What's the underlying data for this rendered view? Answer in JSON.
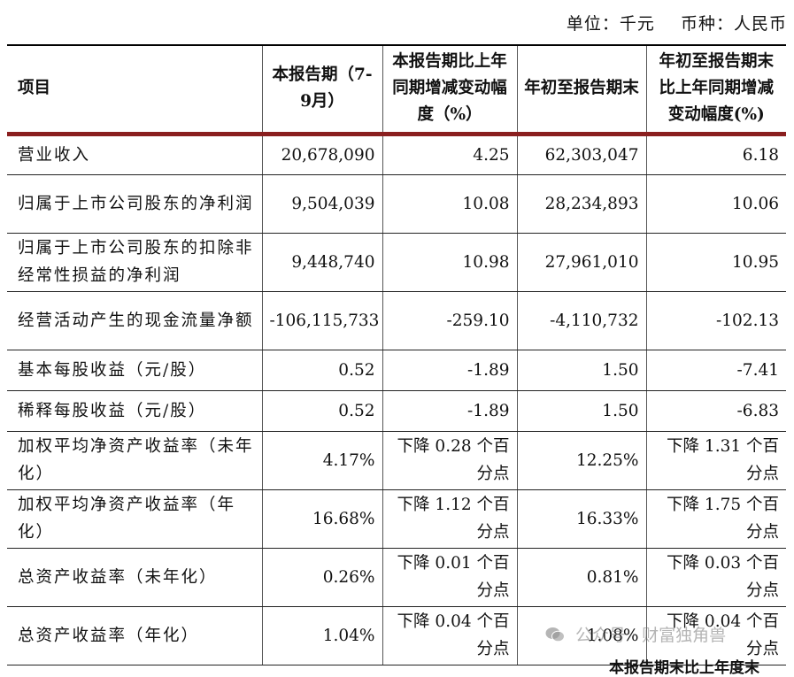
{
  "unit": {
    "unit_label": "单位：千元",
    "currency_label": "币种：人民币"
  },
  "table": {
    "headers": [
      "项目",
      "本报告期（7-9月）",
      "本报告期比上年同期增减变动幅度（%）",
      "年初至报告期末",
      "年初至报告期末比上年同期增减变动幅度(%)"
    ],
    "rows": [
      {
        "item": "营业收入",
        "current": "20,678,090",
        "current_change": "4.25",
        "ytd": "62,303,047",
        "ytd_change": "6.18"
      },
      {
        "item": "归属于上市公司股东的净利润",
        "current": "9,504,039",
        "current_change": "10.08",
        "ytd": "28,234,893",
        "ytd_change": "10.06"
      },
      {
        "item": "归属于上市公司股东的扣除非经常性损益的净利润",
        "current": "9,448,740",
        "current_change": "10.98",
        "ytd": "27,961,010",
        "ytd_change": "10.95"
      },
      {
        "item": "经营活动产生的现金流量净额",
        "current": "-106,115,733",
        "current_change": "-259.10",
        "ytd": "-4,110,732",
        "ytd_change": "-102.13"
      },
      {
        "item": "基本每股收益（元/股）",
        "current": "0.52",
        "current_change": "-1.89",
        "ytd": "1.50",
        "ytd_change": "-7.41"
      },
      {
        "item": "稀释每股收益（元/股）",
        "current": "0.52",
        "current_change": "-1.89",
        "ytd": "1.50",
        "ytd_change": "-6.83"
      },
      {
        "item": "加权平均净资产收益率（未年化）",
        "current": "4.17%",
        "current_change": "下降 0.28 个百分点",
        "ytd": "12.25%",
        "ytd_change": "下降 1.31 个百分点"
      },
      {
        "item": "加权平均净资产收益率（年化）",
        "current": "16.68%",
        "current_change": "下降 1.12 个百分点",
        "ytd": "16.33%",
        "ytd_change": "下降 1.75 个百分点"
      },
      {
        "item": "总资产收益率（未年化）",
        "current": "0.26%",
        "current_change": "下降 0.01 个百分点",
        "ytd": "0.81%",
        "ytd_change": "下降 0.03 个百分点"
      },
      {
        "item": "总资产收益率（年化）",
        "current": "1.04%",
        "current_change": "下降 0.04 个百分点",
        "ytd": "1.08%",
        "ytd_change": "下降 0.04 个百分点"
      }
    ]
  },
  "watermark": {
    "icon": "wechat-icon",
    "text": "公众号 · 财富独角兽"
  },
  "footer_fragment": "本报告期末比上年度末"
}
